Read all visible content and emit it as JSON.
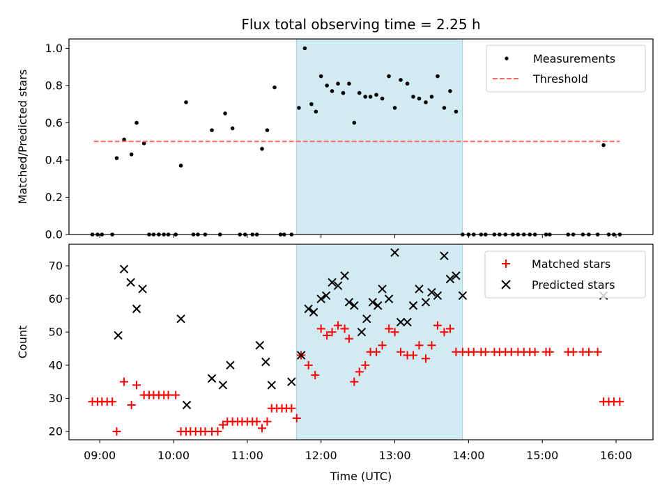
{
  "title": "Flux total observing time = 2.25 h",
  "colors": {
    "measurement": "#000000",
    "threshold": "#ff6b6b",
    "matched": "#ff0000",
    "predicted": "#000000",
    "shade": "#add8e6"
  },
  "chart_data": [
    {
      "type": "scatter",
      "name": "top-panel",
      "xlabel": "",
      "ylabel": "Matched/Predicted stars",
      "xlim": [
        8.583,
        16.5
      ],
      "ylim": [
        0.0,
        1.05
      ],
      "yticks": [
        0.0,
        0.2,
        0.4,
        0.6,
        0.8,
        1.0
      ],
      "ytick_labels": [
        "0.0",
        "0.2",
        "0.4",
        "0.6",
        "0.8",
        "1.0"
      ],
      "highlight_span": [
        11.667,
        13.917
      ],
      "legend": {
        "position": "upper right",
        "entries": [
          "Measurements",
          "Threshold"
        ]
      },
      "threshold": {
        "name": "Threshold",
        "y": 0.5,
        "x_range": [
          8.92,
          16.05
        ],
        "style": "dashed"
      },
      "series": [
        {
          "name": "Measurements",
          "marker": "dot",
          "x": [
            8.9,
            8.97,
            9.03,
            9.17,
            9.23,
            9.33,
            9.43,
            9.5,
            9.6,
            9.67,
            9.73,
            9.8,
            9.87,
            9.93,
            10.03,
            10.1,
            10.17,
            10.27,
            10.33,
            10.43,
            10.52,
            10.63,
            10.7,
            10.8,
            10.9,
            10.97,
            11.07,
            11.13,
            11.2,
            11.27,
            11.37,
            11.45,
            11.5,
            11.6,
            11.7,
            11.78,
            11.87,
            11.93,
            12.0,
            12.08,
            12.15,
            12.23,
            12.3,
            12.38,
            12.45,
            12.52,
            12.6,
            12.67,
            12.75,
            12.83,
            12.92,
            13.0,
            13.08,
            13.17,
            13.25,
            13.33,
            13.42,
            13.5,
            13.58,
            13.67,
            13.75,
            13.83,
            13.92,
            14.0,
            14.07,
            14.17,
            14.23,
            14.35,
            14.42,
            14.5,
            14.6,
            14.67,
            14.75,
            14.83,
            14.9,
            15.05,
            15.1,
            15.35,
            15.42,
            15.55,
            15.63,
            15.75,
            15.83,
            15.9,
            15.97,
            16.05
          ],
          "y": [
            0.0,
            0.0,
            0.0,
            0.0,
            0.41,
            0.51,
            0.43,
            0.6,
            0.49,
            0.0,
            0.0,
            0.0,
            0.0,
            0.0,
            0.0,
            0.37,
            0.71,
            0.0,
            0.0,
            0.0,
            0.56,
            0.0,
            0.65,
            0.57,
            0.0,
            0.0,
            0.0,
            0.0,
            0.46,
            0.56,
            0.79,
            0.0,
            0.0,
            0.0,
            0.68,
            1.0,
            0.7,
            0.66,
            0.85,
            0.8,
            0.77,
            0.81,
            0.76,
            0.81,
            0.6,
            0.76,
            0.74,
            0.74,
            0.75,
            0.73,
            0.85,
            0.68,
            0.83,
            0.81,
            0.74,
            0.73,
            0.71,
            0.74,
            0.85,
            0.68,
            0.77,
            0.66,
            0.0,
            0.0,
            0.0,
            0.0,
            0.0,
            0.0,
            0.0,
            0.0,
            0.0,
            0.0,
            0.0,
            0.0,
            0.0,
            0.0,
            0.0,
            0.0,
            0.0,
            0.0,
            0.0,
            0.0,
            0.48,
            0.0,
            0.0,
            0.0
          ]
        }
      ]
    },
    {
      "type": "scatter",
      "name": "bottom-panel",
      "xlabel": "Time (UTC)",
      "ylabel": "Count",
      "xlim": [
        8.583,
        16.5
      ],
      "ylim": [
        17.5,
        76.5
      ],
      "yticks": [
        20,
        30,
        40,
        50,
        60,
        70
      ],
      "ytick_labels": [
        "20",
        "30",
        "40",
        "50",
        "60",
        "70"
      ],
      "xticks": [
        9,
        10,
        11,
        12,
        13,
        14,
        15,
        16
      ],
      "xtick_labels": [
        "09:00",
        "10:00",
        "11:00",
        "12:00",
        "13:00",
        "14:00",
        "15:00",
        "16:00"
      ],
      "highlight_span": [
        11.667,
        13.917
      ],
      "legend": {
        "position": "upper right",
        "entries": [
          "Matched stars",
          "Predicted stars"
        ]
      },
      "series": [
        {
          "name": "Matched stars",
          "marker": "plus",
          "x": [
            8.9,
            8.97,
            9.03,
            9.1,
            9.17,
            9.23,
            9.33,
            9.43,
            9.5,
            9.6,
            9.67,
            9.73,
            9.8,
            9.87,
            9.93,
            10.03,
            10.1,
            10.17,
            10.23,
            10.3,
            10.37,
            10.43,
            10.52,
            10.6,
            10.67,
            10.73,
            10.8,
            10.87,
            10.93,
            11.0,
            11.07,
            11.13,
            11.2,
            11.27,
            11.33,
            11.4,
            11.47,
            11.53,
            11.6,
            11.67,
            11.73,
            11.83,
            11.92,
            12.0,
            12.08,
            12.15,
            12.23,
            12.32,
            12.38,
            12.45,
            12.52,
            12.6,
            12.67,
            12.75,
            12.83,
            12.92,
            13.0,
            13.08,
            13.17,
            13.25,
            13.33,
            13.42,
            13.5,
            13.58,
            13.67,
            13.75,
            13.83,
            13.92,
            14.0,
            14.07,
            14.17,
            14.23,
            14.35,
            14.42,
            14.5,
            14.58,
            14.67,
            14.75,
            14.83,
            14.9,
            15.05,
            15.1,
            15.35,
            15.42,
            15.55,
            15.63,
            15.75,
            15.83,
            15.9,
            15.97,
            16.05
          ],
          "y": [
            29,
            29,
            29,
            29,
            29,
            20,
            35,
            28,
            34,
            31,
            31,
            31,
            31,
            31,
            31,
            31,
            20,
            20,
            20,
            20,
            20,
            20,
            20,
            20,
            22,
            23,
            23,
            23,
            23,
            23,
            23,
            23,
            21,
            23,
            27,
            27,
            27,
            27,
            27,
            24,
            43,
            40,
            37,
            51,
            49,
            50,
            52,
            51,
            48,
            35,
            38,
            40,
            44,
            44,
            46,
            51,
            50,
            44,
            43,
            43,
            46,
            42,
            46,
            52,
            50,
            51,
            44,
            44,
            44,
            44,
            44,
            44,
            44,
            44,
            44,
            44,
            44,
            44,
            44,
            44,
            44,
            44,
            44,
            44,
            44,
            44,
            44,
            29,
            29,
            29,
            29
          ]
        },
        {
          "name": "Predicted stars",
          "marker": "x",
          "x": [
            9.25,
            9.33,
            9.42,
            9.5,
            9.58,
            10.1,
            10.18,
            10.52,
            10.67,
            10.77,
            11.17,
            11.25,
            11.33,
            11.6,
            11.73,
            11.83,
            11.9,
            12.0,
            12.07,
            12.15,
            12.23,
            12.32,
            12.38,
            12.45,
            12.55,
            12.62,
            12.7,
            12.77,
            12.83,
            12.92,
            13.0,
            13.08,
            13.17,
            13.25,
            13.33,
            13.42,
            13.5,
            13.58,
            13.67,
            13.75,
            13.83,
            13.92,
            15.83
          ],
          "y": [
            49,
            69,
            65,
            57,
            63,
            54,
            28,
            36,
            34,
            40,
            46,
            41,
            34,
            35,
            43,
            57,
            56,
            60,
            61,
            65,
            64,
            67,
            59,
            58,
            50,
            54,
            59,
            58,
            63,
            60,
            74,
            53,
            53,
            58,
            63,
            59,
            62,
            61,
            73,
            66,
            67,
            61,
            61
          ]
        }
      ]
    }
  ]
}
